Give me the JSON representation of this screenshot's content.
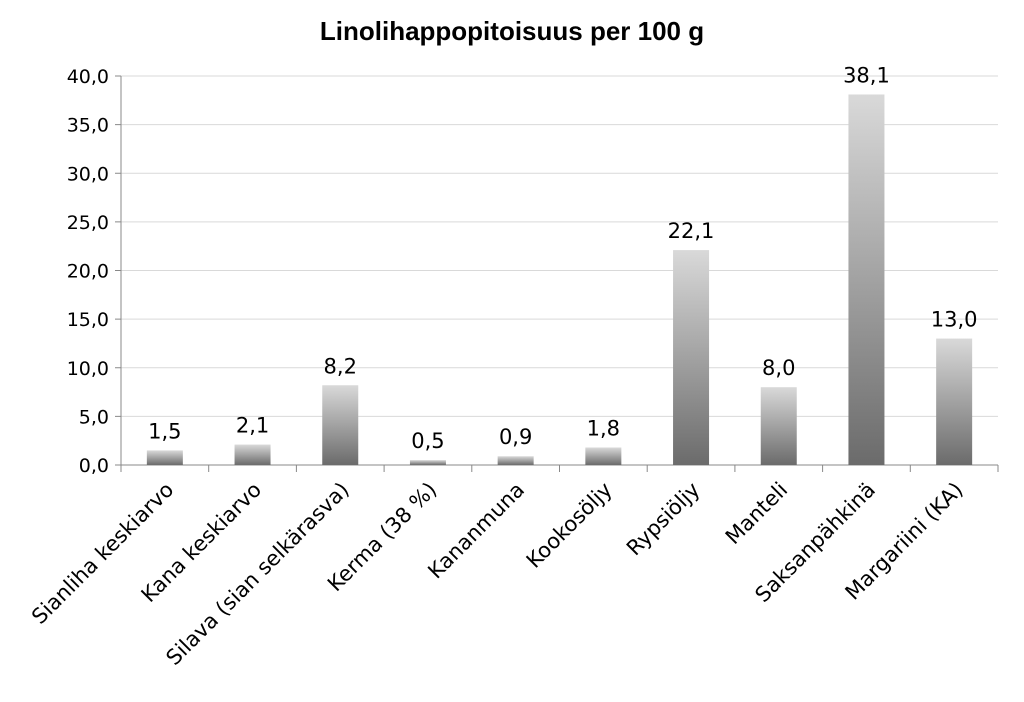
{
  "chart_data": {
    "type": "bar",
    "title": "Linolihappopitoisuus per 100 g",
    "xlabel": "",
    "ylabel": "",
    "ylim": [
      0,
      40
    ],
    "ytick_step": 5,
    "yticks": [
      "0,0",
      "5,0",
      "10,0",
      "15,0",
      "20,0",
      "25,0",
      "30,0",
      "35,0",
      "40,0"
    ],
    "grid": true,
    "legend": "none",
    "categories": [
      "Sianliha keskiarvo",
      "Kana keskiarvo",
      "Silava (sian selkärasva)",
      "Kerma (38 %)",
      "Kananmuna",
      "Kookosöljy",
      "Rypsiöljy",
      "Manteli",
      "Saksanpähkinä",
      "Margariini (KA)"
    ],
    "values": [
      1.5,
      2.1,
      8.2,
      0.5,
      0.9,
      1.8,
      22.1,
      8.0,
      38.1,
      13.0
    ],
    "value_labels": [
      "1,5",
      "2,1",
      "8,2",
      "0,5",
      "0,9",
      "1,8",
      "22,1",
      "8,0",
      "38,1",
      "13,0"
    ],
    "colors": {
      "bar_top": "#d9d9d9",
      "bar_bottom": "#6b6b6b",
      "grid": "#d9d9d9",
      "axis": "#888888"
    }
  }
}
